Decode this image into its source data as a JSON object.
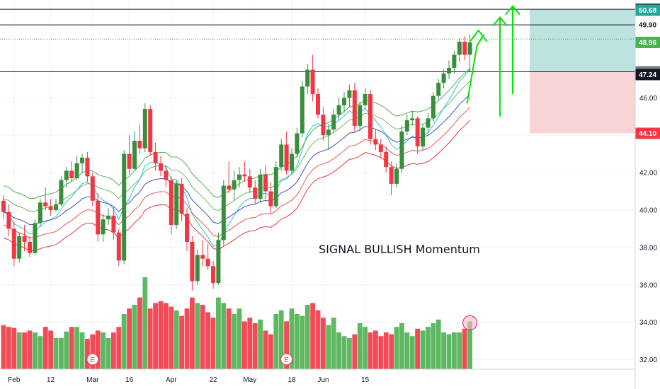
{
  "chart_data": {
    "type": "candlestick",
    "annotation": "SIGNAL BULLISH Momentum",
    "ylim": [
      31,
      51
    ],
    "y_ticks": [
      "32.00",
      "34.00",
      "36.00",
      "38.00",
      "40.00",
      "42.00",
      "44.00",
      "46.00"
    ],
    "x_ticks": [
      "Feb",
      "12",
      "Mar",
      "16",
      "Apr",
      "22",
      "May",
      "18",
      "Jun",
      "15"
    ],
    "x_tick_index": [
      2,
      9,
      17,
      24,
      32,
      40,
      47,
      55,
      61,
      69
    ],
    "price_levels": [
      {
        "label": "50.73",
        "value": 50.73,
        "bg": "#131722",
        "color": "#ffffff",
        "line": "solid"
      },
      {
        "label": "50.68",
        "value": 50.68,
        "bg": "#26a69a",
        "color": "#ffffff",
        "line": "none"
      },
      {
        "label": "49.90",
        "value": 49.9,
        "bg": "#ffffff",
        "color": "#131722",
        "line": "solid"
      },
      {
        "label": "49.14",
        "value": 49.14,
        "bg": "#ffffff",
        "color": "#131722",
        "line": "dotted"
      },
      {
        "label": "48.96",
        "value": 48.96,
        "bg": "#4caf50",
        "color": "#ffffff",
        "line": "none"
      },
      {
        "label": "47.39",
        "value": 47.39,
        "bg": "#787b86",
        "color": "#ffffff",
        "line": "solid"
      },
      {
        "label": "47.24",
        "value": 47.24,
        "bg": "#131722",
        "color": "#ffffff",
        "line": "none"
      },
      {
        "label": "44.10",
        "value": 44.1,
        "bg": "#f23645",
        "color": "#ffffff",
        "line": "none"
      }
    ],
    "target_zone": {
      "from": 47.39,
      "to": 50.73,
      "color": "#bde3df"
    },
    "stop_zone": {
      "from": 44.1,
      "to": 47.39,
      "color": "#f9d4d6"
    },
    "earnings_markers": [
      "E",
      "E"
    ],
    "earnings_index": [
      17,
      54
    ],
    "candles": [
      [
        40.5,
        40.8,
        39.5,
        39.9
      ],
      [
        39.9,
        40.3,
        38.6,
        39.0
      ],
      [
        39.0,
        39.4,
        37.0,
        37.4
      ],
      [
        37.4,
        38.8,
        37.2,
        38.6
      ],
      [
        38.6,
        39.2,
        37.8,
        38.3
      ],
      [
        38.3,
        38.6,
        37.5,
        37.7
      ],
      [
        37.7,
        39.5,
        37.6,
        39.3
      ],
      [
        39.3,
        40.6,
        39.1,
        40.4
      ],
      [
        40.4,
        41.2,
        40.0,
        40.2
      ],
      [
        40.2,
        40.6,
        39.7,
        40.0
      ],
      [
        40.0,
        40.6,
        39.9,
        40.3
      ],
      [
        40.3,
        41.8,
        40.2,
        41.6
      ],
      [
        41.6,
        42.3,
        41.2,
        42.1
      ],
      [
        42.1,
        42.6,
        41.5,
        41.7
      ],
      [
        41.7,
        42.9,
        41.6,
        42.5
      ],
      [
        42.5,
        43.0,
        42.0,
        42.8
      ],
      [
        42.8,
        43.1,
        41.5,
        41.8
      ],
      [
        41.8,
        42.0,
        40.2,
        40.5
      ],
      [
        40.5,
        40.9,
        38.3,
        38.7
      ],
      [
        38.7,
        39.8,
        38.3,
        39.5
      ],
      [
        39.5,
        40.1,
        39.2,
        39.7
      ],
      [
        39.7,
        40.2,
        38.4,
        38.8
      ],
      [
        38.8,
        39.0,
        37.0,
        37.3
      ],
      [
        37.3,
        43.2,
        37.1,
        43.0
      ],
      [
        43.0,
        44.0,
        41.9,
        42.2
      ],
      [
        42.2,
        44.2,
        42.1,
        43.7
      ],
      [
        43.7,
        44.6,
        43.0,
        43.3
      ],
      [
        43.3,
        45.7,
        43.1,
        45.4
      ],
      [
        45.4,
        45.6,
        42.9,
        43.1
      ],
      [
        43.1,
        43.6,
        42.1,
        42.5
      ],
      [
        42.5,
        42.9,
        41.8,
        42.1
      ],
      [
        42.1,
        42.4,
        41.2,
        41.6
      ],
      [
        41.6,
        41.8,
        38.7,
        39.2
      ],
      [
        39.2,
        41.6,
        39.0,
        41.4
      ],
      [
        41.4,
        41.7,
        39.4,
        39.8
      ],
      [
        39.8,
        40.1,
        37.8,
        38.3
      ],
      [
        38.3,
        38.6,
        35.7,
        36.2
      ],
      [
        36.2,
        37.9,
        36.0,
        37.6
      ],
      [
        37.6,
        38.4,
        37.0,
        37.4
      ],
      [
        37.4,
        38.2,
        36.8,
        37.0
      ],
      [
        37.0,
        37.3,
        35.8,
        36.1
      ],
      [
        36.1,
        38.8,
        36.0,
        38.4
      ],
      [
        38.4,
        41.6,
        38.1,
        41.3
      ],
      [
        41.3,
        42.6,
        40.9,
        41.1
      ],
      [
        41.1,
        42.1,
        40.5,
        41.6
      ],
      [
        41.6,
        42.3,
        41.2,
        41.9
      ],
      [
        41.9,
        42.6,
        41.5,
        41.8
      ],
      [
        41.8,
        42.2,
        40.9,
        41.2
      ],
      [
        41.2,
        41.6,
        40.3,
        40.6
      ],
      [
        40.6,
        42.2,
        40.4,
        41.9
      ],
      [
        41.9,
        42.4,
        40.6,
        41.0
      ],
      [
        41.0,
        41.5,
        39.8,
        40.2
      ],
      [
        40.2,
        42.6,
        40.1,
        42.3
      ],
      [
        42.3,
        43.8,
        42.1,
        43.5
      ],
      [
        43.5,
        44.2,
        41.9,
        42.1
      ],
      [
        42.1,
        43.3,
        41.9,
        43.0
      ],
      [
        43.0,
        44.4,
        42.8,
        44.1
      ],
      [
        44.1,
        46.9,
        43.9,
        46.6
      ],
      [
        46.6,
        47.8,
        46.2,
        47.5
      ],
      [
        47.5,
        48.3,
        45.8,
        46.2
      ],
      [
        46.2,
        46.5,
        44.9,
        45.1
      ],
      [
        45.1,
        45.5,
        43.7,
        44.0
      ],
      [
        44.0,
        44.6,
        43.2,
        44.3
      ],
      [
        44.3,
        45.4,
        44.1,
        45.1
      ],
      [
        45.1,
        46.0,
        44.8,
        45.6
      ],
      [
        45.6,
        46.3,
        45.2,
        46.0
      ],
      [
        46.0,
        46.7,
        45.5,
        46.4
      ],
      [
        46.4,
        46.8,
        44.2,
        44.5
      ],
      [
        44.5,
        45.8,
        44.2,
        45.6
      ],
      [
        45.6,
        46.5,
        45.4,
        46.2
      ],
      [
        46.2,
        46.4,
        43.5,
        43.8
      ],
      [
        43.8,
        44.3,
        43.2,
        43.5
      ],
      [
        43.5,
        43.8,
        42.8,
        43.1
      ],
      [
        43.1,
        43.4,
        42.0,
        42.3
      ],
      [
        42.3,
        42.6,
        40.8,
        41.4
      ],
      [
        41.4,
        42.5,
        41.2,
        42.2
      ],
      [
        42.2,
        44.5,
        42.0,
        44.2
      ],
      [
        44.2,
        45.1,
        44.0,
        44.8
      ],
      [
        44.8,
        45.3,
        44.5,
        44.9
      ],
      [
        44.9,
        45.0,
        43.0,
        43.4
      ],
      [
        43.4,
        44.6,
        43.2,
        44.4
      ],
      [
        44.4,
        45.2,
        44.1,
        44.9
      ],
      [
        44.9,
        46.3,
        44.7,
        46.1
      ],
      [
        46.1,
        47.0,
        45.9,
        46.8
      ],
      [
        46.8,
        47.5,
        46.5,
        47.3
      ],
      [
        47.3,
        48.0,
        47.0,
        47.6
      ],
      [
        47.6,
        48.5,
        47.3,
        48.3
      ],
      [
        48.3,
        49.2,
        47.9,
        49.0
      ],
      [
        49.0,
        49.3,
        48.0,
        48.3
      ],
      [
        48.3,
        49.4,
        47.4,
        48.96
      ]
    ],
    "volume": [
      48,
      46,
      45,
      40,
      40,
      42,
      40,
      36,
      46,
      42,
      34,
      34,
      41,
      46,
      46,
      40,
      33,
      38,
      42,
      40,
      34,
      40,
      46,
      60,
      66,
      70,
      78,
      100,
      66,
      72,
      74,
      72,
      68,
      64,
      58,
      66,
      78,
      72,
      70,
      62,
      56,
      78,
      72,
      66,
      60,
      66,
      52,
      56,
      50,
      54,
      42,
      38,
      60,
      64,
      52,
      66,
      60,
      58,
      70,
      72,
      64,
      56,
      48,
      56,
      40,
      36,
      34,
      38,
      50,
      46,
      40,
      42,
      36,
      40,
      38,
      46,
      50,
      40,
      36,
      44,
      42,
      46,
      50,
      54,
      40,
      38,
      40,
      40,
      44,
      52
    ]
  }
}
